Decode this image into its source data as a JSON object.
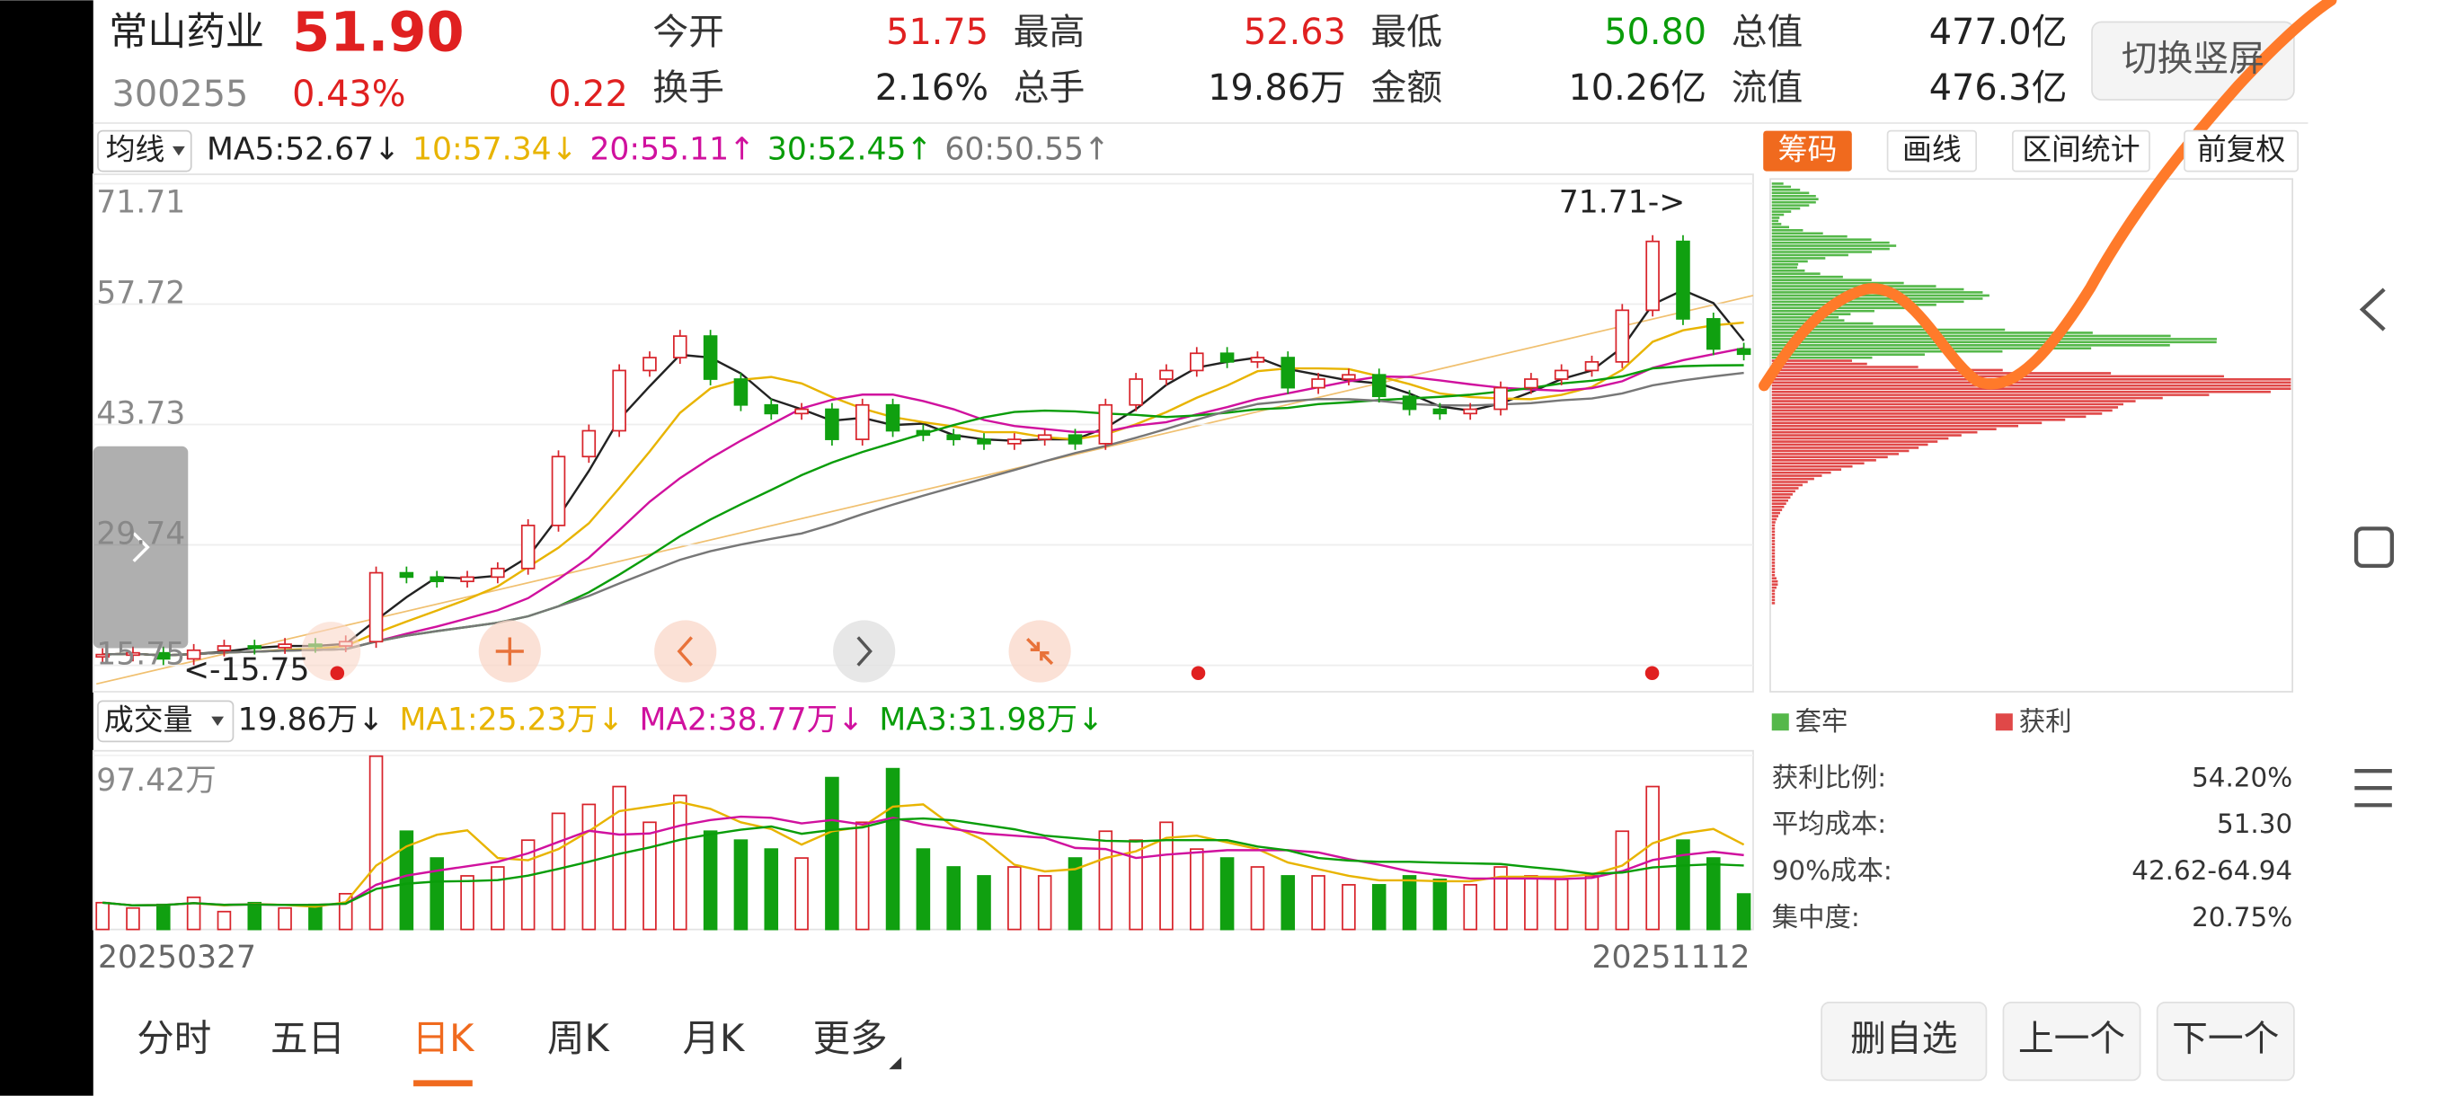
{
  "header": {
    "name": "常山药业",
    "price": "51.90",
    "code": "300255",
    "change_pct": "0.43%",
    "change": "0.22",
    "stats": [
      {
        "label": "今开",
        "value": "51.75",
        "color": "#e02020"
      },
      {
        "label": "最高",
        "value": "52.63",
        "color": "#e02020"
      },
      {
        "label": "最低",
        "value": "50.80",
        "color": "#0a9d0a"
      },
      {
        "label": "总值",
        "value": "477.0亿",
        "color": "#222222"
      },
      {
        "label": "换手",
        "value": "2.16%",
        "color": "#222222"
      },
      {
        "label": "总手",
        "value": "19.86万",
        "color": "#222222"
      },
      {
        "label": "金额",
        "value": "10.26亿",
        "color": "#222222"
      },
      {
        "label": "流值",
        "value": "476.3亿",
        "color": "#222222"
      }
    ],
    "toggle_button": "切换竖屏"
  },
  "ma_bar": {
    "selector": "均线",
    "items": [
      {
        "text": "MA5:52.67↓",
        "color": "#222222"
      },
      {
        "text": "10:57.34↓",
        "color": "#e8b400"
      },
      {
        "text": "20:55.11↑",
        "color": "#d0119e"
      },
      {
        "text": "30:52.45↑",
        "color": "#0a9d0a"
      },
      {
        "text": "60:50.55↑",
        "color": "#777777"
      }
    ]
  },
  "tools": [
    "筹码",
    "画线",
    "区间统计",
    "前复权"
  ],
  "volume_bar": {
    "selector": "成交量",
    "items": [
      {
        "text": "19.86万↓",
        "color": "#222222"
      },
      {
        "text": "MA1:25.23万↓",
        "color": "#e8b400"
      },
      {
        "text": "MA2:38.77万↓",
        "color": "#d0119e"
      },
      {
        "text": "MA3:31.98万↓",
        "color": "#0a9d0a"
      }
    ]
  },
  "chart_data": [
    {
      "type": "candlestick",
      "ylim": [
        15.75,
        71.71
      ],
      "yticks": [
        71.71,
        57.72,
        43.73,
        29.74,
        15.75
      ],
      "up_color": "#d8242b",
      "down_color": "#10a010",
      "annotations": [
        "71.71->",
        "<-15.75"
      ],
      "values": [
        17.0,
        17.2,
        16.5,
        17.5,
        18.0,
        17.8,
        18.2,
        18.0,
        18.5,
        26.5,
        26.0,
        25.5,
        26.0,
        27.0,
        32.0,
        40.0,
        43.0,
        50.0,
        51.5,
        54.0,
        49.0,
        46.0,
        45.0,
        45.5,
        42.0,
        46.0,
        43.0,
        42.5,
        42.0,
        41.5,
        42.0,
        42.5,
        41.5,
        46.0,
        49.0,
        50.0,
        52.0,
        51.0,
        51.5,
        48.0,
        49.0,
        49.5,
        47.0,
        45.5,
        45.0,
        45.5,
        48.0,
        49.0,
        50.0,
        51.0,
        57.0,
        65.0,
        56.0,
        52.5,
        51.9
      ]
    },
    {
      "type": "bar",
      "ylim": [
        0,
        97.42
      ],
      "yticks": [
        {
          "value": 97.42,
          "label": "97.42万"
        }
      ],
      "categories": [
        "20250327",
        null,
        null,
        null,
        null,
        null,
        null,
        null,
        null,
        null,
        null,
        null,
        null,
        null,
        null,
        null,
        null,
        null,
        null,
        null,
        null,
        null,
        null,
        null,
        null,
        null,
        null,
        null,
        null,
        null,
        null,
        null,
        null,
        null,
        null,
        null,
        null,
        null,
        null,
        null,
        null,
        null,
        null,
        null,
        null,
        null,
        null,
        null,
        null,
        null,
        null,
        null,
        null,
        null,
        "20251112"
      ],
      "values": [
        15,
        12,
        14,
        18,
        10,
        15,
        12,
        14,
        20,
        97,
        55,
        40,
        30,
        35,
        50,
        65,
        70,
        80,
        60,
        75,
        55,
        50,
        45,
        40,
        85,
        60,
        90,
        45,
        35,
        30,
        35,
        30,
        40,
        55,
        50,
        60,
        45,
        40,
        35,
        30,
        30,
        25,
        25,
        30,
        28,
        25,
        35,
        30,
        28,
        30,
        55,
        80,
        50,
        40,
        19.86
      ]
    }
  ],
  "chips": {
    "legend": [
      {
        "label": "套牢",
        "color": "#55b84a"
      },
      {
        "label": "获利",
        "color": "#e04848"
      }
    ],
    "stats": [
      {
        "label": "获利比例:",
        "value": "54.20%"
      },
      {
        "label": "平均成本:",
        "value": "51.30"
      },
      {
        "label": "90%成本:",
        "value": "42.62-64.94"
      },
      {
        "label": "集中度:",
        "value": "20.75%"
      }
    ]
  },
  "tabs": [
    "分时",
    "五日",
    "日K",
    "周K",
    "月K",
    "更多"
  ],
  "buttons": [
    "删自选",
    "上一个",
    "下一个"
  ]
}
